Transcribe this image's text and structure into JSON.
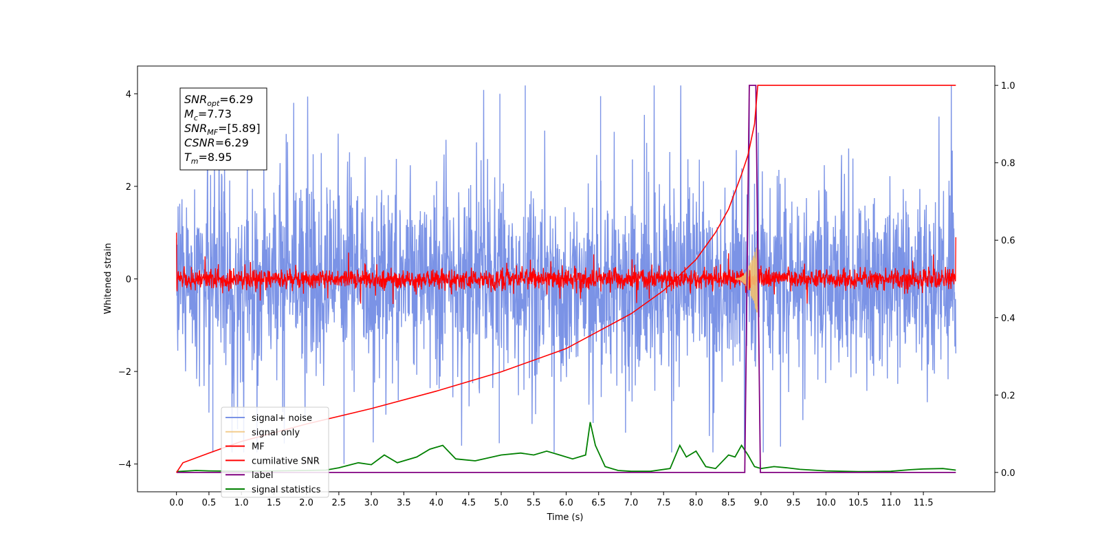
{
  "chart_data": {
    "type": "line",
    "xlabel": "Time (s)",
    "ylabel": "Whitened strain",
    "xlim": [
      -0.6,
      12.6
    ],
    "ylim": [
      -4.6,
      4.6
    ],
    "y2lim": [
      -0.05,
      1.05
    ],
    "x_ticks": [
      "0.0",
      "0.5",
      "1.0",
      "1.5",
      "2.0",
      "2.5",
      "3.0",
      "3.5",
      "4.0",
      "4.5",
      "5.0",
      "5.5",
      "6.0",
      "6.5",
      "7.0",
      "7.5",
      "8.0",
      "8.5",
      "9.0",
      "9.5",
      "10.0",
      "10.5",
      "11.0",
      "11.5"
    ],
    "y_ticks": [
      "4",
      "2",
      "0",
      "−2",
      "−4"
    ],
    "y2_ticks": [
      "1.0",
      "0.8",
      "0.6",
      "0.4",
      "0.2",
      "0.0"
    ],
    "legend_position": "lower-left",
    "annotations": {
      "snr_opt": {
        "label": "SNR",
        "sub": "opt",
        "value": "=6.29"
      },
      "mc": {
        "label": "M",
        "sub": "c",
        "value": "=7.73"
      },
      "snr_mf": {
        "label": "SNR",
        "sub": "MF",
        "value": "=[5.89]"
      },
      "csnr": {
        "label": "CSNR",
        "sub": "",
        "value": "=6.29"
      },
      "tm": {
        "label": "T",
        "sub": "m",
        "value": "=8.95"
      }
    },
    "series": [
      {
        "name": "signal+ noise",
        "color": "#7b93e6",
        "axis": "left",
        "envelope": {
          "x_range": [
            0.0,
            12.0
          ],
          "typical_amplitude": 2.3,
          "peak_max": 4.18,
          "peak_min": -3.75
        }
      },
      {
        "name": "signal only",
        "color": "#f0c070",
        "axis": "left",
        "chirp": {
          "x_start": 8.6,
          "x_end": 8.95,
          "peak_amplitude": 0.8
        }
      },
      {
        "name": "MF",
        "color": "#ff0000",
        "axis": "left",
        "envelope": {
          "x_range": [
            0.0,
            12.0
          ],
          "typical_amplitude": 0.25,
          "start_value": 1.0,
          "end_value": 0.9
        }
      },
      {
        "name": "cumilative SNR",
        "color": "#ff0000",
        "axis": "right",
        "x": [
          0.0,
          0.1,
          0.5,
          1.0,
          2.0,
          3.0,
          4.0,
          5.0,
          6.0,
          7.0,
          7.5,
          8.0,
          8.3,
          8.5,
          8.7,
          8.8,
          8.9,
          8.95,
          12.0
        ],
        "y": [
          0.0,
          0.025,
          0.05,
          0.08,
          0.125,
          0.165,
          0.21,
          0.26,
          0.32,
          0.41,
          0.47,
          0.55,
          0.62,
          0.68,
          0.77,
          0.82,
          0.9,
          1.0,
          1.0
        ]
      },
      {
        "name": "label",
        "color": "#800080",
        "axis": "right",
        "x": [
          0.0,
          8.75,
          8.82,
          8.92,
          8.99,
          12.0
        ],
        "y": [
          0.0,
          0.0,
          1.0,
          1.0,
          0.0,
          0.0
        ]
      },
      {
        "name": "signal statistics",
        "color": "#008000",
        "axis": "right",
        "x": [
          0.0,
          0.3,
          0.5,
          1.0,
          1.5,
          2.0,
          2.3,
          2.5,
          2.8,
          3.0,
          3.2,
          3.4,
          3.7,
          3.9,
          4.1,
          4.3,
          4.6,
          5.0,
          5.3,
          5.5,
          5.7,
          5.9,
          6.1,
          6.3,
          6.37,
          6.45,
          6.6,
          6.8,
          7.0,
          7.3,
          7.6,
          7.75,
          7.85,
          8.0,
          8.15,
          8.3,
          8.5,
          8.6,
          8.7,
          8.8,
          8.9,
          9.0,
          9.2,
          9.4,
          9.6,
          10.0,
          10.5,
          11.0,
          11.3,
          11.5,
          11.8,
          12.0
        ],
        "y": [
          0.002,
          0.005,
          0.004,
          0.003,
          0.004,
          0.005,
          0.006,
          0.012,
          0.025,
          0.02,
          0.045,
          0.025,
          0.04,
          0.06,
          0.07,
          0.035,
          0.03,
          0.045,
          0.05,
          0.045,
          0.055,
          0.045,
          0.035,
          0.045,
          0.13,
          0.07,
          0.015,
          0.005,
          0.003,
          0.003,
          0.01,
          0.07,
          0.04,
          0.055,
          0.015,
          0.01,
          0.045,
          0.04,
          0.07,
          0.045,
          0.015,
          0.01,
          0.015,
          0.012,
          0.008,
          0.004,
          0.002,
          0.003,
          0.007,
          0.009,
          0.01,
          0.006
        ]
      }
    ]
  }
}
